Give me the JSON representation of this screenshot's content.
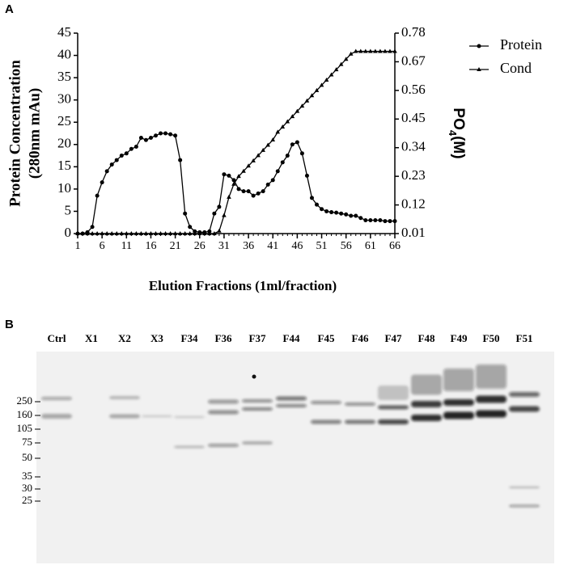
{
  "chart_data": {
    "type": "line",
    "panel": "A",
    "xlabel": "Elution Fractions (1ml/fraction)",
    "ylabel": [
      "Protein  Concentration",
      "(280nm mAu)"
    ],
    "y2label": [
      "PO",
      "4",
      "(M)"
    ],
    "x": [
      1,
      2,
      3,
      4,
      5,
      6,
      7,
      8,
      9,
      10,
      11,
      12,
      13,
      14,
      15,
      16,
      17,
      18,
      19,
      20,
      21,
      22,
      23,
      24,
      25,
      26,
      27,
      28,
      29,
      30,
      31,
      32,
      33,
      34,
      35,
      36,
      37,
      38,
      39,
      40,
      41,
      42,
      43,
      44,
      45,
      46,
      47,
      48,
      49,
      50,
      51,
      52,
      53,
      54,
      55,
      56,
      57,
      58,
      59,
      60,
      61,
      62,
      63,
      64,
      65,
      66
    ],
    "xlim": [
      1,
      66
    ],
    "xticks": [
      1,
      6,
      11,
      16,
      21,
      26,
      31,
      36,
      41,
      46,
      51,
      56,
      61,
      66
    ],
    "ylim": [
      0,
      45
    ],
    "yticks": [
      0,
      5,
      10,
      15,
      20,
      25,
      30,
      35,
      40,
      45
    ],
    "y2lim": [
      0.01,
      0.78
    ],
    "y2ticks": [
      0.01,
      0.12,
      0.23,
      0.34,
      0.45,
      0.56,
      0.67,
      0.78
    ],
    "legend": "right",
    "series": [
      {
        "name": "Protein",
        "color": "#000000",
        "marker": "circle",
        "values": [
          0,
          0,
          0.3,
          1.5,
          8.5,
          11.5,
          14,
          15.5,
          16.5,
          17.5,
          18,
          19,
          19.5,
          21.5,
          21,
          21.5,
          22,
          22.5,
          22.5,
          22.3,
          22,
          16.5,
          4.5,
          1.5,
          0.5,
          0.3,
          0.3,
          0.5,
          4.5,
          6,
          13.3,
          13,
          12,
          10,
          9.5,
          9.5,
          8.5,
          9,
          9.5,
          11,
          12,
          14,
          16,
          17.5,
          20,
          20.5,
          18,
          13,
          8,
          6.5,
          5.5,
          5,
          4.8,
          4.7,
          4.5,
          4.3,
          4,
          4,
          3.5,
          3,
          3,
          3,
          3,
          2.8,
          2.8,
          2.8
        ]
      },
      {
        "name": "Cond",
        "color": "#000000",
        "marker": "triangle",
        "axis": "y2",
        "values": [
          0.01,
          0.01,
          0.01,
          0.01,
          0.01,
          0.01,
          0.01,
          0.01,
          0.01,
          0.01,
          0.01,
          0.01,
          0.01,
          0.01,
          0.01,
          0.01,
          0.01,
          0.01,
          0.01,
          0.01,
          0.01,
          0.01,
          0.01,
          0.01,
          0.01,
          0.01,
          0.01,
          0.01,
          0.01,
          0.02,
          0.08,
          0.15,
          0.2,
          0.23,
          0.25,
          0.27,
          0.29,
          0.31,
          0.33,
          0.35,
          0.37,
          0.4,
          0.42,
          0.44,
          0.46,
          0.48,
          0.5,
          0.52,
          0.54,
          0.56,
          0.58,
          0.6,
          0.62,
          0.64,
          0.66,
          0.68,
          0.7,
          0.71,
          0.71,
          0.71,
          0.71,
          0.71,
          0.71,
          0.71,
          0.71,
          0.71
        ]
      }
    ]
  },
  "gel": {
    "panel": "B",
    "lanes": [
      "Ctrl",
      "X1",
      "X2",
      "X3",
      "F34",
      "F36",
      "F37",
      "F44",
      "F45",
      "F46",
      "F47",
      "F48",
      "F49",
      "F50",
      "F51"
    ],
    "markers": [
      "250",
      "160",
      "105",
      "75",
      "50",
      "35",
      "30",
      "25"
    ]
  }
}
